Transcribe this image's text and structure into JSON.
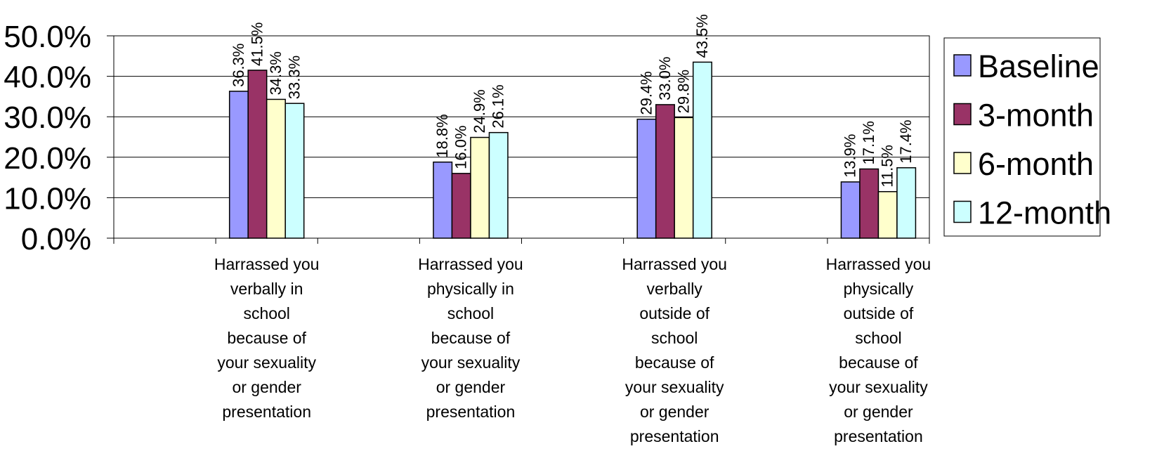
{
  "chart_data": {
    "type": "bar",
    "title": "",
    "xlabel": "",
    "ylabel": "",
    "ylim": [
      0,
      50
    ],
    "y_ticks": [
      "0.0%",
      "10.0%",
      "20.0%",
      "30.0%",
      "40.0%",
      "50.0%"
    ],
    "grid": true,
    "legend_position": "right",
    "categories": [
      "Harrassed you verbally in school because of your sexuality or gender presentation",
      "Harrassed you physically in school because of your sexuality or gender presentation",
      "Harrassed you verbally outside of school because of your sexuality or gender presentation",
      "Harrassed you physically outside of school because of your sexuality or gender presentation"
    ],
    "category_lines": [
      [
        "Harrassed you",
        "verbally in",
        "school",
        "because of",
        "your sexuality",
        "or gender",
        "presentation"
      ],
      [
        "Harrassed you",
        "physically in",
        "school",
        "because of",
        "your sexuality",
        "or gender",
        "presentation"
      ],
      [
        "Harrassed you",
        "verbally",
        "outside of",
        "school",
        "because of",
        "your sexuality",
        "or gender",
        "presentation"
      ],
      [
        "Harrassed you",
        "physically",
        "outside of",
        "school",
        "because of",
        "your sexuality",
        "or gender",
        "presentation"
      ]
    ],
    "series": [
      {
        "name": "Baseline",
        "color": "#9999ff",
        "values": [
          36.3,
          18.8,
          29.4,
          13.9
        ],
        "labels": [
          "36.3%",
          "18.8%",
          "29.4%",
          "13.9%"
        ]
      },
      {
        "name": "3-month",
        "color": "#993366",
        "values": [
          41.5,
          16.0,
          33.0,
          17.1
        ],
        "labels": [
          "41.5%",
          "16.0%",
          "33.0%",
          "17.1%"
        ]
      },
      {
        "name": "6-month",
        "color": "#ffffcc",
        "values": [
          34.3,
          24.9,
          29.8,
          11.5
        ],
        "labels": [
          "34.3%",
          "24.9%",
          "29.8%",
          "11.5%"
        ]
      },
      {
        "name": "12-month",
        "color": "#ccffff",
        "values": [
          33.3,
          26.1,
          43.5,
          17.4
        ],
        "labels": [
          "33.3%",
          "26.1%",
          "43.5%",
          "17.4%"
        ]
      }
    ]
  }
}
